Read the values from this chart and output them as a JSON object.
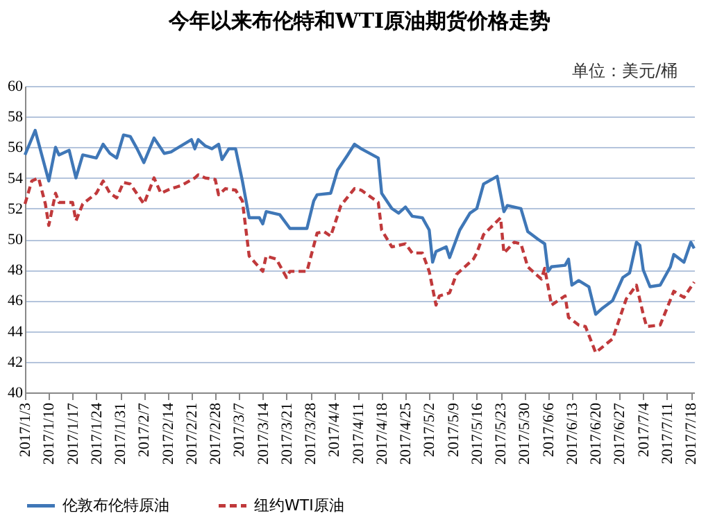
{
  "chart_data": {
    "type": "line",
    "title": "今年以来布伦特和WTI原油期货价格走势",
    "annotations": [
      "单位：美元/桶"
    ],
    "ylim": [
      40,
      60
    ],
    "yticks": [
      40,
      42,
      44,
      46,
      48,
      50,
      52,
      54,
      56,
      58,
      60
    ],
    "grid": "y",
    "legend": "bottom",
    "marker": "none",
    "xlim": [
      "2017-01-03",
      "2017-07-19"
    ],
    "xticks": [
      {
        "value": "2017-01-03",
        "label": "2017/1/3"
      },
      {
        "value": "2017-01-10",
        "label": "2017/1/10"
      },
      {
        "value": "2017-01-17",
        "label": "2017/1/17"
      },
      {
        "value": "2017-01-24",
        "label": "2017/1/24"
      },
      {
        "value": "2017-01-31",
        "label": "2017/1/31"
      },
      {
        "value": "2017-02-07",
        "label": "2017/2/7"
      },
      {
        "value": "2017-02-14",
        "label": "2017/2/14"
      },
      {
        "value": "2017-02-21",
        "label": "2017/2/21"
      },
      {
        "value": "2017-02-28",
        "label": "2017/2/28"
      },
      {
        "value": "2017-03-07",
        "label": "2017/3/7"
      },
      {
        "value": "2017-03-14",
        "label": "2017/3/14"
      },
      {
        "value": "2017-03-21",
        "label": "2017/3/21"
      },
      {
        "value": "2017-03-28",
        "label": "2017/3/28"
      },
      {
        "value": "2017-04-04",
        "label": "2017/4/4"
      },
      {
        "value": "2017-04-11",
        "label": "2017/4/11"
      },
      {
        "value": "2017-04-18",
        "label": "2017/4/18"
      },
      {
        "value": "2017-04-25",
        "label": "2017/4/25"
      },
      {
        "value": "2017-05-02",
        "label": "2017/5/2"
      },
      {
        "value": "2017-05-09",
        "label": "2017/5/9"
      },
      {
        "value": "2017-05-16",
        "label": "2017/5/16"
      },
      {
        "value": "2017-05-23",
        "label": "2017/5/23"
      },
      {
        "value": "2017-05-30",
        "label": "2017/5/30"
      },
      {
        "value": "2017-06-06",
        "label": "2017/6/6"
      },
      {
        "value": "2017-06-13",
        "label": "2017/6/13"
      },
      {
        "value": "2017-06-20",
        "label": "2017/6/20"
      },
      {
        "value": "2017-06-27",
        "label": "2017/6/27"
      },
      {
        "value": "2017-07-04",
        "label": "2017/7/4"
      },
      {
        "value": "2017-07-11",
        "label": "2017/7/11"
      },
      {
        "value": "2017-07-18",
        "label": "2017/7/18"
      }
    ],
    "series": [
      {
        "name": "伦敦布伦特原油",
        "color": "#3f77b7",
        "line_style": "solid",
        "x": [
          "2017-01-03",
          "2017-01-06",
          "2017-01-10",
          "2017-01-12",
          "2017-01-13",
          "2017-01-16",
          "2017-01-18",
          "2017-01-20",
          "2017-01-24",
          "2017-01-26",
          "2017-01-28",
          "2017-01-30",
          "2017-02-01",
          "2017-02-03",
          "2017-02-05",
          "2017-02-07",
          "2017-02-10",
          "2017-02-13",
          "2017-02-15",
          "2017-02-21",
          "2017-02-22",
          "2017-02-23",
          "2017-02-25",
          "2017-02-27",
          "2017-03-01",
          "2017-03-02",
          "2017-03-04",
          "2017-03-06",
          "2017-03-08",
          "2017-03-10",
          "2017-03-13",
          "2017-03-14",
          "2017-03-15",
          "2017-03-19",
          "2017-03-22",
          "2017-03-27",
          "2017-03-29",
          "2017-03-30",
          "2017-04-03",
          "2017-04-05",
          "2017-04-08",
          "2017-04-10",
          "2017-04-12",
          "2017-04-17",
          "2017-04-18",
          "2017-04-21",
          "2017-04-23",
          "2017-04-25",
          "2017-04-27",
          "2017-04-30",
          "2017-05-02",
          "2017-05-03",
          "2017-05-04",
          "2017-05-07",
          "2017-05-08",
          "2017-05-11",
          "2017-05-14",
          "2017-05-16",
          "2017-05-18",
          "2017-05-22",
          "2017-05-24",
          "2017-05-25",
          "2017-05-29",
          "2017-05-31",
          "2017-06-03",
          "2017-06-05",
          "2017-06-06",
          "2017-06-07",
          "2017-06-11",
          "2017-06-12",
          "2017-06-13",
          "2017-06-15",
          "2017-06-18",
          "2017-06-20",
          "2017-06-22",
          "2017-06-25",
          "2017-06-28",
          "2017-06-30",
          "2017-07-02",
          "2017-07-03",
          "2017-07-04",
          "2017-07-06",
          "2017-07-09",
          "2017-07-12",
          "2017-07-13",
          "2017-07-16",
          "2017-07-18",
          "2017-07-19"
        ],
        "values": [
          55.5,
          57.1,
          53.8,
          56.0,
          55.5,
          55.8,
          54.0,
          55.5,
          55.3,
          56.2,
          55.6,
          55.3,
          56.8,
          56.7,
          55.9,
          55.0,
          56.6,
          55.6,
          55.7,
          56.5,
          55.9,
          56.5,
          56.1,
          55.9,
          56.2,
          55.2,
          55.9,
          55.9,
          53.8,
          51.4,
          51.4,
          51.0,
          51.8,
          51.6,
          50.7,
          50.7,
          52.5,
          52.9,
          53.0,
          54.5,
          55.5,
          56.2,
          55.9,
          55.3,
          53.0,
          52.0,
          51.7,
          52.1,
          51.5,
          51.4,
          50.6,
          48.5,
          49.2,
          49.5,
          48.8,
          50.6,
          51.7,
          52.0,
          53.6,
          54.1,
          51.8,
          52.2,
          52.0,
          50.5,
          50.0,
          49.7,
          47.9,
          48.2,
          48.3,
          48.7,
          47.0,
          47.3,
          46.9,
          45.1,
          45.5,
          46.0,
          47.5,
          47.8,
          49.8,
          49.6,
          48.0,
          46.9,
          47.0,
          48.2,
          49.0,
          48.5,
          49.8,
          49.4
        ]
      },
      {
        "name": "纽约WTI原油",
        "color": "#c0393b",
        "line_style": "dashed",
        "x": [
          "2017-01-03",
          "2017-01-05",
          "2017-01-07",
          "2017-01-09",
          "2017-01-10",
          "2017-01-12",
          "2017-01-13",
          "2017-01-17",
          "2017-01-18",
          "2017-01-20",
          "2017-01-24",
          "2017-01-26",
          "2017-01-28",
          "2017-01-30",
          "2017-02-01",
          "2017-02-03",
          "2017-02-07",
          "2017-02-10",
          "2017-02-12",
          "2017-02-15",
          "2017-02-18",
          "2017-02-22",
          "2017-02-23",
          "2017-02-25",
          "2017-02-28",
          "2017-03-01",
          "2017-03-03",
          "2017-03-06",
          "2017-03-08",
          "2017-03-10",
          "2017-03-12",
          "2017-03-14",
          "2017-03-15",
          "2017-03-18",
          "2017-03-21",
          "2017-03-22",
          "2017-03-27",
          "2017-03-30",
          "2017-04-01",
          "2017-04-03",
          "2017-04-06",
          "2017-04-10",
          "2017-04-12",
          "2017-04-17",
          "2017-04-18",
          "2017-04-21",
          "2017-04-25",
          "2017-04-27",
          "2017-04-30",
          "2017-05-02",
          "2017-05-04",
          "2017-05-05",
          "2017-05-08",
          "2017-05-10",
          "2017-05-12",
          "2017-05-15",
          "2017-05-16",
          "2017-05-18",
          "2017-05-23",
          "2017-05-24",
          "2017-05-27",
          "2017-05-29",
          "2017-05-31",
          "2017-06-03",
          "2017-06-04",
          "2017-06-05",
          "2017-06-07",
          "2017-06-11",
          "2017-06-12",
          "2017-06-15",
          "2017-06-17",
          "2017-06-20",
          "2017-06-25",
          "2017-06-29",
          "2017-07-02",
          "2017-07-04",
          "2017-07-05",
          "2017-07-09",
          "2017-07-13",
          "2017-07-16",
          "2017-07-19"
        ],
        "values": [
          52.3,
          53.8,
          54.0,
          52.3,
          50.9,
          53.0,
          52.4,
          52.4,
          51.2,
          52.3,
          53.0,
          53.8,
          53.0,
          52.7,
          53.7,
          53.6,
          52.3,
          54.0,
          53.0,
          53.3,
          53.5,
          54.0,
          54.2,
          54.0,
          53.9,
          52.9,
          53.3,
          53.2,
          52.5,
          48.9,
          48.4,
          47.9,
          48.9,
          48.7,
          47.5,
          47.9,
          47.9,
          50.4,
          50.5,
          50.2,
          52.2,
          53.3,
          53.2,
          52.4,
          50.6,
          49.5,
          49.7,
          49.1,
          49.1,
          47.9,
          45.7,
          46.3,
          46.5,
          47.7,
          48.1,
          48.7,
          49.1,
          50.3,
          51.4,
          49.1,
          49.8,
          49.7,
          48.2,
          47.6,
          47.4,
          48.1,
          45.7,
          46.3,
          44.9,
          44.4,
          44.3,
          42.6,
          43.5,
          46.1,
          47.0,
          45.1,
          44.3,
          44.4,
          46.6,
          46.2,
          47.2
        ]
      }
    ]
  }
}
